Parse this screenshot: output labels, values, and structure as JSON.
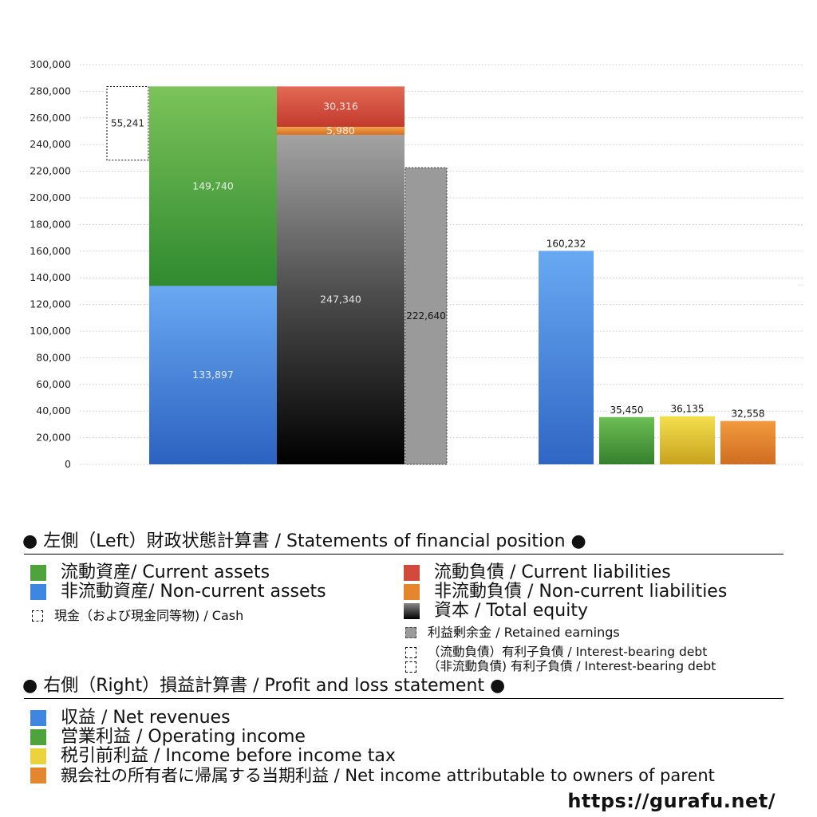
{
  "chart_data": {
    "type": "bar",
    "ylim": [
      0,
      300000
    ],
    "yticks": [
      "0",
      "20,000",
      "40,000",
      "60,000",
      "80,000",
      "100,000",
      "120,000",
      "140,000",
      "160,000",
      "180,000",
      "200,000",
      "220,000",
      "240,000",
      "260,000",
      "280,000",
      "300,000"
    ],
    "grid": true,
    "left_balance_sheet": {
      "cash": {
        "value": 55241,
        "label": "55,241",
        "range": [
          228275,
          283516
        ]
      },
      "assets": [
        {
          "name": "non_current_assets",
          "value": 133897,
          "label": "133,897",
          "color": "#3b7ee0"
        },
        {
          "name": "current_assets",
          "value": 149740,
          "label": "149,740",
          "color": "#52a83f"
        }
      ],
      "liabilities_equity": [
        {
          "name": "total_equity",
          "value": 247340,
          "label": "247,340",
          "color": "#333333"
        },
        {
          "name": "non_current_liabilities",
          "value": 5980,
          "label": "5,980",
          "color": "#e2852d"
        },
        {
          "name": "current_liabilities",
          "value": 30316,
          "label": "30,316",
          "color": "#d04a3a"
        }
      ],
      "retained_earnings": {
        "value": 222640,
        "label": "222,640",
        "color": "#9a9a9a"
      }
    },
    "right_profit_loss": [
      {
        "name": "net_revenues",
        "value": 160232,
        "label": "160,232",
        "top": "#69a9f3",
        "bottom": "#2f66c4"
      },
      {
        "name": "operating_income",
        "value": 35450,
        "label": "35,450",
        "top": "#6cbf55",
        "bottom": "#357f2b"
      },
      {
        "name": "income_before_tax",
        "value": 36135,
        "label": "36,135",
        "top": "#f3e04e",
        "bottom": "#c9a21e"
      },
      {
        "name": "net_income_parent",
        "value": 32558,
        "label": "32,558",
        "top": "#f19a3e",
        "bottom": "#d06d22"
      }
    ]
  },
  "legend_left": {
    "heading": "● 左側（Left）財政状態計算書 / Statements of financial position ●",
    "items": {
      "current_assets": "流動資産/ Current assets",
      "non_current_assets": "非流動資産/ Non-current assets",
      "cash": "現金（および現金同等物) / Cash",
      "current_liabilities": "流動負債 /  Current liabilities",
      "non_current_liabilities": "非流動負債 / Non-current liabilities",
      "total_equity": "資本 / Total equity",
      "retained_earnings": "利益剰余金 / Retained earnings",
      "ibd_current": "（流動負債）有利子負債 / Interest-bearing debt",
      "ibd_non_current": "（非流動負債) 有利子負債 / Interest-bearing debt"
    }
  },
  "legend_right": {
    "heading": "● 右側（Right）損益計算書 / Profit and loss statement ●",
    "items": {
      "net_revenues": "収益 / Net revenues",
      "operating_income": "営業利益 / Operating income",
      "income_before_tax": "税引前利益 / Income before income tax",
      "net_income_parent": "親会社の所有者に帰属する当期利益 / Net income attributable to owners of parent"
    }
  },
  "footer": {
    "url": "https://gurafu.net/"
  }
}
